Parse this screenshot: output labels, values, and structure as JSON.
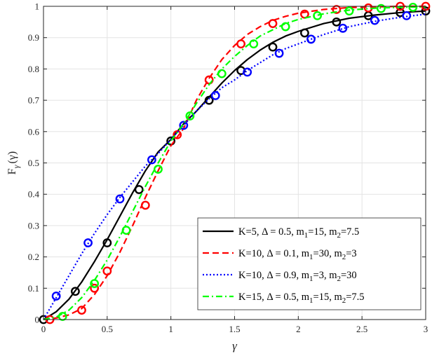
{
  "chart_data": {
    "type": "line",
    "title": "",
    "xlabel": "γ",
    "ylabel": {
      "main": "F",
      "sub": "γ",
      "suffix": "(γ)"
    },
    "xlim": [
      0,
      3
    ],
    "ylim": [
      0,
      1
    ],
    "xticks": [
      0,
      0.5,
      1,
      1.5,
      2,
      2.5,
      3
    ],
    "xtick_labels": [
      "0",
      "0.5",
      "1",
      "1.5",
      "2",
      "2.5",
      "3"
    ],
    "yticks": [
      0,
      0.1,
      0.2,
      0.3,
      0.4,
      0.5,
      0.6,
      0.7,
      0.8,
      0.9,
      1
    ],
    "ytick_labels": [
      "0",
      "0.1",
      "0.2",
      "0.3",
      "0.4",
      "0.5",
      "0.6",
      "0.7",
      "0.8",
      "0.9",
      "1"
    ],
    "grid": true,
    "legend_position": "bottom-right",
    "series": [
      {
        "name": "K=5, Δ = 0.5, m1=15, m2=7.5",
        "legend": [
          [
            "K=5, Δ = 0.5, m",
            ""
          ],
          [
            "1",
            "sub"
          ],
          [
            "=15, m",
            ""
          ],
          [
            "2",
            "sub"
          ],
          [
            "=7.5",
            ""
          ]
        ],
        "color": "#000000",
        "line_style": "solid",
        "curve_x": [
          0,
          0.1,
          0.2,
          0.3,
          0.4,
          0.5,
          0.6,
          0.7,
          0.8,
          0.9,
          1.0,
          1.1,
          1.2,
          1.3,
          1.4,
          1.5,
          1.6,
          1.7,
          1.8,
          1.9,
          2.0,
          2.2,
          2.4,
          2.6,
          2.8,
          3.0
        ],
        "curve_y": [
          0,
          0.025,
          0.065,
          0.12,
          0.185,
          0.255,
          0.33,
          0.405,
          0.475,
          0.535,
          0.575,
          0.625,
          0.665,
          0.71,
          0.755,
          0.795,
          0.83,
          0.86,
          0.885,
          0.905,
          0.92,
          0.945,
          0.962,
          0.972,
          0.98,
          0.985
        ],
        "markers_x": [
          0,
          0.25,
          0.5,
          0.75,
          1.0,
          1.3,
          1.55,
          1.8,
          2.05,
          2.3,
          2.55,
          2.8,
          3.0
        ],
        "markers_y": [
          0,
          0.09,
          0.245,
          0.415,
          0.57,
          0.7,
          0.795,
          0.87,
          0.915,
          0.95,
          0.97,
          0.98,
          0.985
        ]
      },
      {
        "name": "K=10, Δ = 0.1, m1=30, m2=3",
        "legend": [
          [
            "K=10, Δ = 0.1, m",
            ""
          ],
          [
            "1",
            "sub"
          ],
          [
            "=30, m",
            ""
          ],
          [
            "2",
            "sub"
          ],
          [
            "=3",
            ""
          ]
        ],
        "color": "#ff0000",
        "line_style": "dashed",
        "curve_x": [
          0,
          0.1,
          0.2,
          0.3,
          0.4,
          0.5,
          0.6,
          0.7,
          0.8,
          0.9,
          1.0,
          1.1,
          1.2,
          1.3,
          1.4,
          1.5,
          1.6,
          1.7,
          1.8,
          1.9,
          2.0,
          2.2,
          2.4,
          2.6,
          2.8,
          3.0
        ],
        "curve_y": [
          0,
          0.005,
          0.015,
          0.035,
          0.08,
          0.14,
          0.215,
          0.3,
          0.39,
          0.475,
          0.555,
          0.61,
          0.7,
          0.77,
          0.83,
          0.875,
          0.91,
          0.935,
          0.955,
          0.968,
          0.978,
          0.99,
          0.996,
          0.998,
          1.0,
          1.0
        ],
        "markers_x": [
          0.05,
          0.3,
          0.4,
          0.5,
          0.8,
          1.05,
          1.3,
          1.55,
          1.8,
          2.05,
          2.3,
          2.55,
          2.8,
          3.0
        ],
        "markers_y": [
          0,
          0.03,
          0.1,
          0.155,
          0.365,
          0.59,
          0.765,
          0.88,
          0.945,
          0.975,
          0.99,
          0.995,
          1.0,
          1.0
        ]
      },
      {
        "name": "K=10, Δ = 0.9, m1=3, m2=30",
        "legend": [
          [
            "K=10, Δ = 0.9, m",
            ""
          ],
          [
            "1",
            "sub"
          ],
          [
            "=3, m",
            ""
          ],
          [
            "2",
            "sub"
          ],
          [
            "=30",
            ""
          ]
        ],
        "color": "#0000ff",
        "line_style": "dotted",
        "curve_x": [
          0,
          0.1,
          0.2,
          0.3,
          0.4,
          0.5,
          0.6,
          0.7,
          0.8,
          0.9,
          1.0,
          1.1,
          1.2,
          1.3,
          1.4,
          1.5,
          1.6,
          1.7,
          1.8,
          1.9,
          2.0,
          2.2,
          2.4,
          2.6,
          2.8,
          3.0
        ],
        "curve_y": [
          0,
          0.07,
          0.14,
          0.21,
          0.275,
          0.335,
          0.39,
          0.44,
          0.49,
          0.53,
          0.575,
          0.62,
          0.665,
          0.705,
          0.74,
          0.765,
          0.795,
          0.82,
          0.845,
          0.865,
          0.88,
          0.91,
          0.935,
          0.952,
          0.965,
          0.975
        ],
        "markers_x": [
          0.1,
          0.35,
          0.6,
          0.85,
          1.1,
          1.35,
          1.6,
          1.85,
          2.1,
          2.35,
          2.6,
          2.85
        ],
        "markers_y": [
          0.075,
          0.245,
          0.385,
          0.51,
          0.62,
          0.715,
          0.79,
          0.85,
          0.895,
          0.93,
          0.955,
          0.97
        ]
      },
      {
        "name": "K=15, Δ = 0.5, m1=15, m2=7.5",
        "legend": [
          [
            "K=15, Δ = 0.5, m",
            ""
          ],
          [
            "1",
            "sub"
          ],
          [
            "=15, m",
            ""
          ],
          [
            "2",
            "sub"
          ],
          [
            "=7.5",
            ""
          ]
        ],
        "color": "#00ff00",
        "line_style": "dashdot",
        "curve_x": [
          0,
          0.1,
          0.2,
          0.3,
          0.4,
          0.5,
          0.6,
          0.7,
          0.8,
          0.9,
          1.0,
          1.1,
          1.2,
          1.3,
          1.4,
          1.5,
          1.6,
          1.7,
          1.8,
          1.9,
          2.0,
          2.2,
          2.4,
          2.6,
          2.8,
          3.0
        ],
        "curve_y": [
          0,
          0.008,
          0.03,
          0.07,
          0.125,
          0.19,
          0.265,
          0.345,
          0.425,
          0.5,
          0.57,
          0.625,
          0.69,
          0.75,
          0.8,
          0.84,
          0.875,
          0.905,
          0.925,
          0.945,
          0.958,
          0.976,
          0.988,
          0.994,
          0.997,
          0.998
        ],
        "markers_x": [
          0.15,
          0.4,
          0.65,
          0.9,
          1.15,
          1.4,
          1.65,
          1.9,
          2.15,
          2.4,
          2.65,
          2.9
        ],
        "markers_y": [
          0.01,
          0.115,
          0.285,
          0.48,
          0.65,
          0.785,
          0.88,
          0.935,
          0.97,
          0.985,
          0.993,
          0.997
        ]
      }
    ]
  }
}
